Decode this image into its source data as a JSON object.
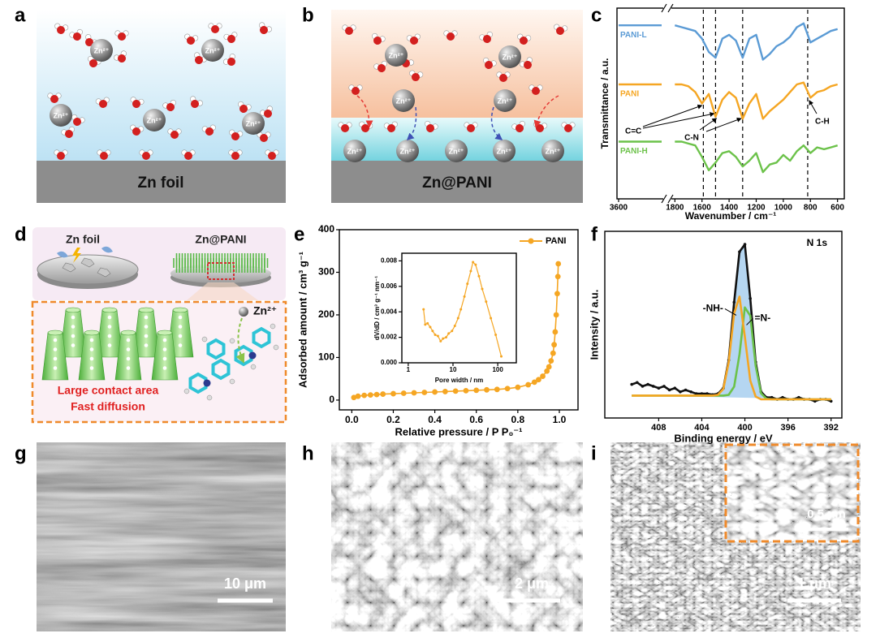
{
  "panels": {
    "a": {
      "label": "a",
      "substrate": "Zn foil",
      "ion": "Zn²⁺"
    },
    "b": {
      "label": "b",
      "substrate": "Zn@PANI",
      "ion": "Zn²⁺"
    },
    "c": {
      "label": "c"
    },
    "d": {
      "label": "d",
      "left_title": "Zn foil",
      "right_title": "Zn@PANI",
      "ion": "Zn²⁺",
      "captions": [
        "Large contact area",
        "Fast diffusion"
      ]
    },
    "e": {
      "label": "e"
    },
    "f": {
      "label": "f"
    },
    "g": {
      "label": "g",
      "scale_bar": "10 μm"
    },
    "h": {
      "label": "h",
      "scale_bar": "2 μm"
    },
    "i": {
      "label": "i",
      "scale_bar": "1 μm",
      "inset_scale_bar": "0.5 μm"
    }
  },
  "chart_data": [
    {
      "type": "line",
      "xlabel": "Wavenumber / cm⁻¹",
      "ylabel": "Transmittance / a.u.",
      "x": [
        3600,
        3450,
        3300,
        1800,
        1750,
        1700,
        1650,
        1600,
        1550,
        1500,
        1450,
        1400,
        1350,
        1300,
        1250,
        1200,
        1150,
        1100,
        1050,
        1000,
        950,
        900,
        850,
        800,
        750,
        700,
        650,
        600
      ],
      "xsegments": [
        [
          3600,
          3300
        ],
        [
          1820,
          550
        ]
      ],
      "xticks": [
        3600,
        1800,
        1600,
        1400,
        1200,
        1000,
        800,
        600
      ],
      "ylim": [
        0,
        100
      ],
      "legend": "inline",
      "series": [
        {
          "name": "PANI-L",
          "color": "#5b9bd5",
          "values": [
            91,
            91,
            91,
            91,
            90,
            89,
            88,
            84,
            77,
            74,
            84,
            86,
            83,
            74,
            84,
            86,
            73,
            76,
            80,
            82,
            85,
            90,
            92,
            82,
            84,
            86,
            88,
            89
          ]
        },
        {
          "name": "PANI",
          "color": "#f5a623",
          "values": [
            60,
            60,
            60,
            60,
            60,
            59,
            56,
            50,
            55,
            43,
            52,
            56,
            53,
            42,
            50,
            55,
            42,
            46,
            49,
            52,
            56,
            60,
            61,
            53,
            56,
            57,
            59,
            60
          ]
        },
        {
          "name": "PANI-H",
          "color": "#6cc24a",
          "values": [
            30,
            30,
            30,
            30,
            30,
            29,
            28,
            22,
            15,
            19,
            24,
            25,
            22,
            17,
            20,
            24,
            14,
            18,
            19,
            23,
            20,
            25,
            28,
            24,
            27,
            26,
            27,
            28
          ]
        }
      ],
      "reference_lines": [
        1590,
        1500,
        1300,
        820
      ],
      "annotations": [
        "C=C",
        "C-N",
        "C-H"
      ]
    },
    {
      "type": "line",
      "markers": true,
      "xlabel": "Relative pressure / P P₀⁻¹",
      "ylabel": "Adsorbed amount / cm³ g⁻¹",
      "x": [
        0.01,
        0.03,
        0.06,
        0.09,
        0.12,
        0.15,
        0.2,
        0.25,
        0.3,
        0.35,
        0.4,
        0.45,
        0.5,
        0.55,
        0.6,
        0.65,
        0.7,
        0.75,
        0.8,
        0.85,
        0.88,
        0.9,
        0.92,
        0.94,
        0.95,
        0.96,
        0.97,
        0.975,
        0.98,
        0.985,
        0.99,
        0.993,
        0.995
      ],
      "xlim": [
        -0.06,
        1.09
      ],
      "xticks": [
        {
          "value": 0,
          "label": "0.0"
        },
        0.2,
        0.4,
        0.6,
        0.8,
        {
          "value": 1,
          "label": "1.0"
        }
      ],
      "ylim": [
        -23,
        400
      ],
      "yticks": [
        0,
        100,
        200,
        300,
        400
      ],
      "legend": "upper right",
      "series": [
        {
          "name": "PANI",
          "color": "#f5a623",
          "values": [
            6,
            9,
            11,
            12,
            13,
            14,
            15,
            16,
            17,
            18,
            19,
            20,
            21,
            22,
            23,
            24,
            25,
            27,
            30,
            36,
            42,
            48,
            56,
            68,
            78,
            92,
            110,
            130,
            160,
            200,
            250,
            290,
            320
          ]
        }
      ]
    },
    {
      "type": "line",
      "markers": true,
      "xlabel": "Pore width / nm",
      "ylabel": "dV/dD / cm³ g⁻¹ nm⁻¹",
      "xscale": "log",
      "x": [
        2.2,
        2.4,
        2.7,
        3.1,
        3.5,
        4,
        4.6,
        5.3,
        6,
        7,
        8,
        9.5,
        11,
        13,
        15,
        18,
        21,
        25,
        28,
        32,
        38,
        45,
        55,
        70,
        90,
        120
      ],
      "xlim": [
        0.72,
        260
      ],
      "xticks": [
        1,
        10,
        100
      ],
      "ylim": [
        0,
        0.0086
      ],
      "yticks": [
        {
          "value": 0,
          "label": "0.000"
        },
        {
          "value": 0.002,
          "label": "0.002"
        },
        {
          "value": 0.004,
          "label": "0.004"
        },
        {
          "value": 0.006,
          "label": "0.006"
        },
        {
          "value": 0.008,
          "label": "0.008"
        }
      ],
      "series": [
        {
          "color": "#f5a623",
          "values": [
            0.0042,
            0.003,
            0.0031,
            0.0028,
            0.0025,
            0.0022,
            0.0021,
            0.0017,
            0.0019,
            0.002,
            0.0023,
            0.0025,
            0.0029,
            0.0035,
            0.0042,
            0.0052,
            0.0062,
            0.0072,
            0.0079,
            0.0077,
            0.0068,
            0.0058,
            0.0048,
            0.0035,
            0.0022,
            0.0005
          ]
        }
      ]
    },
    {
      "type": "line",
      "title": "N 1s",
      "xlabel": "Binding energy / eV",
      "ylabel": "Intensity / a.u.",
      "x": [
        410.5,
        410,
        409.5,
        409,
        408.5,
        408,
        407.5,
        407,
        406.5,
        406,
        405.5,
        405,
        404.5,
        404,
        403.5,
        403,
        402.5,
        402,
        401.5,
        401,
        400.5,
        400,
        399.5,
        399,
        398.5,
        398,
        397.5,
        397,
        396.5,
        396,
        395.5,
        395,
        394.5,
        394,
        393.5,
        393,
        392.5,
        392
      ],
      "xlim": [
        413,
        391
      ],
      "xticks": [
        408,
        404,
        400,
        396,
        392
      ],
      "ylim": [
        0,
        100
      ],
      "legend": "at-peaks",
      "series": [
        {
          "color": "#a8cfee",
          "fill": true,
          "values": [
            12,
            12,
            12,
            12,
            12,
            12,
            12,
            12,
            12,
            12,
            12,
            12,
            12,
            12,
            12,
            12,
            12.4,
            15.6,
            30.2,
            60.8,
            88,
            92.2,
            64.8,
            29.5,
            13.2,
            10.3,
            10,
            10,
            10,
            10,
            10,
            10,
            10,
            10,
            10,
            10,
            10,
            10
          ]
        },
        {
          "color": "#111111",
          "markers": true,
          "values": [
            18,
            19,
            17,
            18,
            17,
            16,
            17,
            15,
            16,
            14,
            15,
            14,
            13,
            13,
            13,
            12.5,
            13,
            16,
            31,
            62,
            89,
            93,
            64,
            30,
            14,
            11,
            11,
            10,
            11,
            10,
            10,
            11,
            10,
            10,
            9,
            10,
            10,
            9
          ]
        },
        {
          "name": "=N-",
          "color": "#6cc24a",
          "values": [
            12,
            12,
            12,
            12,
            12,
            12,
            12,
            12,
            12,
            12,
            12,
            12,
            12,
            12,
            12,
            12,
            12,
            12,
            12.4,
            16.8,
            34,
            59.2,
            54.8,
            28,
            13.2,
            10.3,
            10,
            10,
            10,
            10,
            10,
            10,
            10,
            10,
            10,
            10,
            10,
            10
          ]
        },
        {
          "name": "-NH-",
          "color": "#f5a623",
          "values": [
            12,
            12,
            12,
            12,
            12,
            12,
            12,
            12,
            12,
            12,
            12,
            12,
            12,
            12,
            12,
            12,
            12.4,
            15.6,
            29.8,
            56,
            65,
            43.5,
            20,
            11.5,
            10,
            10,
            10,
            10,
            10,
            10,
            10,
            10,
            10,
            10,
            10,
            10,
            10,
            10
          ]
        }
      ]
    }
  ]
}
